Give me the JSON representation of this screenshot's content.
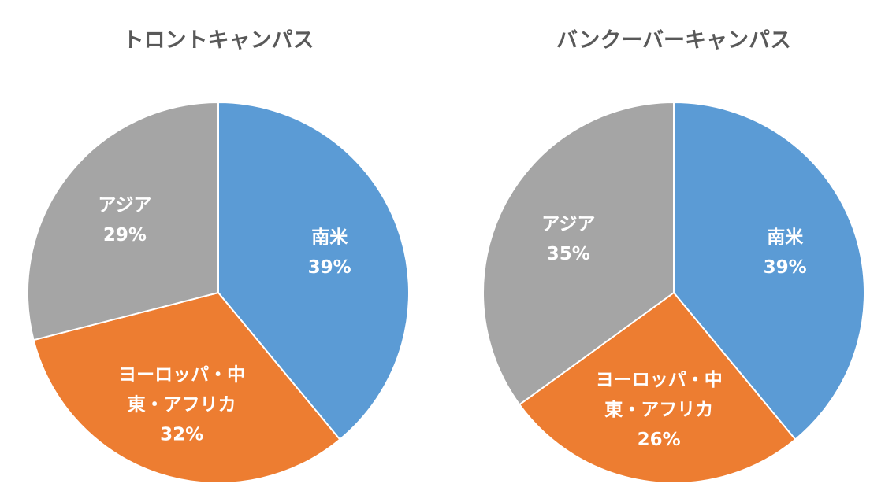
{
  "chart_data": [
    {
      "type": "pie",
      "title": "トロントキャンパス",
      "categories": [
        "南米",
        "ヨーロッパ・中東・アフリカ",
        "アジア"
      ],
      "values": [
        39,
        32,
        29
      ],
      "unit": "%",
      "data_labels": [
        {
          "lines": [
            "南米",
            "39%"
          ]
        },
        {
          "lines": [
            "ヨーロッパ・中",
            "東・アフリカ",
            "32%"
          ]
        },
        {
          "lines": [
            "アジア",
            "29%"
          ]
        }
      ],
      "colors": [
        "#5b9bd5",
        "#ed7d31",
        "#a5a5a5"
      ],
      "legend": "none"
    },
    {
      "type": "pie",
      "title": "バンクーバーキャンパス",
      "categories": [
        "南米",
        "ヨーロッパ・中東・アフリカ",
        "アジア"
      ],
      "values": [
        39,
        26,
        35
      ],
      "unit": "%",
      "data_labels": [
        {
          "lines": [
            "南米",
            "39%"
          ]
        },
        {
          "lines": [
            "ヨーロッパ・中",
            "東・アフリカ",
            "26%"
          ]
        },
        {
          "lines": [
            "アジア",
            "35%"
          ]
        }
      ],
      "colors": [
        "#5b9bd5",
        "#ed7d31",
        "#a5a5a5"
      ],
      "legend": "none"
    }
  ]
}
